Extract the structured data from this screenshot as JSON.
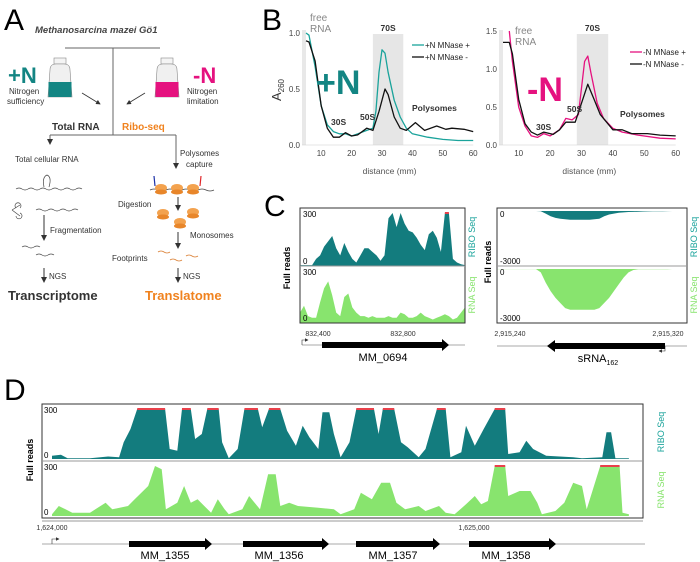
{
  "colors": {
    "teal": "#138583",
    "ribo_fill": "#137c7e",
    "rna_fill": "#88e46e",
    "pink": "#e5127f",
    "orange": "#f0821e",
    "cap_red": "#e8414b",
    "shade": "#e6e6e6"
  },
  "panel_a": {
    "letter": "A",
    "organism": "Methanosarcina mazei Gö1",
    "plus_n": {
      "label": "+N",
      "line1": "Nitrogen",
      "line2": "sufficiency"
    },
    "minus_n": {
      "label": "-N",
      "line1": "Nitrogen",
      "line2": "limitation"
    },
    "total_rna": "Total RNA",
    "ribo_seq": "Ribo-seq",
    "left_steps": {
      "s1": "Total cellular RNA",
      "s2": "Fragmentation",
      "s3": "NGS",
      "result": "Transcriptome"
    },
    "right_steps": {
      "s1a": "Polysomes",
      "s1b": "capture",
      "s2": "Digestion",
      "s3": "Monosomes",
      "s4": "Footprints",
      "s5": "NGS",
      "result": "Translatome"
    }
  },
  "panel_b": {
    "letter": "B",
    "ylabel_main": "A",
    "ylabel_sub": "260"
  },
  "panel_c": {
    "letter": "C",
    "ylabel": "Full reads",
    "ribo_label": "RIBO Seq",
    "rna_label": "RNA Seq",
    "left_gene": "MM_0694",
    "right_gene_main": "sRNA",
    "right_gene_sub": "162"
  },
  "panel_d": {
    "letter": "D",
    "ylabel": "Full reads",
    "ribo_label": "RIBO Seq",
    "rna_label": "RNA Seq",
    "genes": [
      "MM_1355",
      "MM_1356",
      "MM_1357",
      "MM_1358"
    ]
  },
  "chart_data": [
    {
      "type": "line",
      "id": "b_plusN",
      "xlabel": "distance (mm)",
      "ylabel": "A260",
      "xlim": [
        5,
        60
      ],
      "ylim": [
        0,
        1.0
      ],
      "xticks": [
        "10",
        "20",
        "30",
        "40",
        "50",
        "60"
      ],
      "yticks": [
        "0.0",
        "0.5",
        "1.0"
      ],
      "condition_label": "+N",
      "annotations": {
        "free": "free",
        "rna": "RNA",
        "s70": "70S",
        "s30": "30S",
        "s50": "50S",
        "poly": "Polysomes"
      },
      "shaded_range": [
        27,
        37
      ],
      "legend": "top-right",
      "series": [
        {
          "name": "+N MNase +",
          "color": "#1aa39b",
          "x": [
            5,
            6,
            8,
            10,
            12,
            14,
            16,
            18,
            20,
            22,
            25,
            27,
            28,
            29,
            30,
            31,
            32,
            34,
            36,
            38,
            40,
            45,
            50,
            55,
            60
          ],
          "y": [
            1.0,
            0.98,
            0.7,
            0.35,
            0.18,
            0.12,
            0.1,
            0.1,
            0.08,
            0.1,
            0.13,
            0.15,
            0.3,
            0.65,
            0.85,
            0.82,
            0.65,
            0.4,
            0.25,
            0.15,
            0.1,
            0.07,
            0.05,
            0.04,
            0.04
          ]
        },
        {
          "name": "+N MNase -",
          "color": "#111111",
          "x": [
            5,
            6,
            8,
            10,
            12,
            14,
            16,
            18,
            20,
            22,
            25,
            27,
            29,
            31,
            32,
            34,
            36,
            38,
            41,
            44,
            48,
            51,
            53,
            57,
            60
          ],
          "y": [
            0.93,
            0.92,
            0.75,
            0.35,
            0.15,
            0.07,
            0.07,
            0.11,
            0.08,
            0.09,
            0.15,
            0.13,
            0.3,
            0.5,
            0.45,
            0.25,
            0.15,
            0.13,
            0.2,
            0.13,
            0.17,
            0.14,
            0.15,
            0.14,
            0.12
          ]
        }
      ]
    },
    {
      "type": "line",
      "id": "b_minusN",
      "xlabel": "distance (mm)",
      "ylabel": "A260",
      "xlim": [
        5,
        60
      ],
      "ylim": [
        0,
        1.5
      ],
      "xticks": [
        "10",
        "20",
        "30",
        "40",
        "50",
        "60"
      ],
      "yticks": [
        "0.0",
        "0.5",
        "1.0",
        "1.5"
      ],
      "condition_label": "-N",
      "annotations": {
        "free": "free",
        "rna": "RNA",
        "s70": "70S",
        "s30": "30S",
        "s50": "50S",
        "poly": "Polysomes"
      },
      "shaded_range": [
        28.5,
        38.5
      ],
      "legend": "top-right",
      "series": [
        {
          "name": "-N MNase +",
          "color": "#e5127f",
          "x": [
            7,
            8,
            10,
            12,
            14,
            16,
            18,
            20,
            23,
            25,
            27,
            29,
            31,
            32,
            33,
            35,
            37,
            40,
            43,
            48,
            55,
            60
          ],
          "y": [
            1.5,
            1.1,
            0.5,
            0.25,
            0.12,
            0.1,
            0.15,
            0.12,
            0.2,
            0.35,
            0.33,
            0.4,
            1.1,
            1.17,
            0.95,
            0.55,
            0.35,
            0.22,
            0.17,
            0.13,
            0.09,
            0.08
          ]
        },
        {
          "name": "-N MNase -",
          "color": "#111111",
          "x": [
            5,
            7,
            8,
            10,
            12,
            14,
            16,
            18,
            21,
            23,
            25,
            28,
            30,
            32,
            34,
            36,
            40,
            43,
            46,
            51,
            55,
            60
          ],
          "y": [
            1.35,
            1.35,
            1.2,
            0.6,
            0.28,
            0.17,
            0.13,
            0.17,
            0.14,
            0.2,
            0.3,
            0.3,
            0.55,
            0.8,
            0.6,
            0.4,
            0.2,
            0.2,
            0.15,
            0.15,
            0.13,
            0.12
          ]
        }
      ]
    },
    {
      "type": "area",
      "id": "c_left",
      "xlim": [
        832310,
        833090
      ],
      "ylim": [
        0,
        300
      ],
      "xticks": [
        "832,400",
        "832,800"
      ],
      "ytick_top": "300",
      "ytick_zero": "0",
      "series": [
        {
          "name": "RIBO Seq",
          "values": [
            5,
            5,
            5,
            5,
            40,
            60,
            110,
            140,
            170,
            100,
            60,
            130,
            80,
            40,
            20,
            60,
            100,
            100,
            80,
            60,
            30,
            60,
            270,
            300,
            220,
            300,
            240,
            200,
            190,
            160,
            120,
            90,
            180,
            200,
            160,
            80,
            300,
            300,
            40,
            20,
            10,
            5
          ]
        },
        {
          "name": "RNA Seq",
          "values": [
            60,
            100,
            40,
            30,
            30,
            120,
            200,
            240,
            160,
            60,
            40,
            150,
            170,
            90,
            60,
            40,
            40,
            30,
            40,
            30,
            30,
            30,
            40,
            30,
            30,
            60,
            50,
            30,
            30,
            40,
            60,
            40,
            30,
            20,
            30,
            40,
            50,
            40,
            20,
            30,
            60,
            90
          ]
        }
      ]
    },
    {
      "type": "area",
      "id": "c_right",
      "xlim": [
        2915233,
        2915330
      ],
      "ylim": [
        -3000,
        0
      ],
      "xticks": [
        "2,915,240",
        "2,915,320"
      ],
      "ytick_top": "0",
      "ytick_bottom": "-3000",
      "series": [
        {
          "name": "RIBO Seq",
          "values": [
            0,
            0,
            0,
            0,
            0,
            0,
            0,
            0,
            0,
            -20,
            -150,
            -300,
            -400,
            -450,
            -480,
            -500,
            -500,
            -500,
            -500,
            -500,
            -480,
            -450,
            -300,
            -200,
            -150,
            -100,
            -80,
            -60,
            -50,
            -40,
            -30,
            -25,
            -20,
            -15,
            -10,
            -5,
            -2,
            0,
            0,
            0
          ]
        },
        {
          "name": "RNA Seq",
          "values": [
            -5,
            -5,
            -5,
            -5,
            -5,
            -5,
            -5,
            -5,
            -5,
            -200,
            -800,
            -1300,
            -1700,
            -2000,
            -2300,
            -2400,
            -2400,
            -2400,
            -2400,
            -2400,
            -2400,
            -2300,
            -2000,
            -1700,
            -1300,
            -900,
            -500,
            -200,
            -60,
            -20,
            -20,
            -20,
            -20,
            -20,
            -20,
            -20,
            0,
            0,
            0,
            0
          ]
        }
      ]
    },
    {
      "type": "area",
      "id": "d",
      "x_origin": 1624000,
      "xlim_offset": [
        -24,
        1400
      ],
      "ylim": [
        0,
        300
      ],
      "xticks": [
        "1,624,000",
        "1,625,000"
      ],
      "ytick_top": "300",
      "ytick_zero": "0",
      "series": [
        {
          "name": "RIBO Seq",
          "points": [
            [
              0,
              20
            ],
            [
              21,
              25
            ],
            [
              37,
              5
            ],
            [
              90,
              5
            ],
            [
              133,
              15
            ],
            [
              159,
              10
            ],
            [
              170,
              100
            ],
            [
              186,
              180
            ],
            [
              202,
              300
            ],
            [
              268,
              300
            ],
            [
              279,
              60
            ],
            [
              297,
              50
            ],
            [
              308,
              300
            ],
            [
              329,
              300
            ],
            [
              339,
              120
            ],
            [
              355,
              150
            ],
            [
              368,
              300
            ],
            [
              395,
              300
            ],
            [
              403,
              100
            ],
            [
              419,
              5
            ],
            [
              440,
              60
            ],
            [
              456,
              300
            ],
            [
              488,
              300
            ],
            [
              498,
              190
            ],
            [
              514,
              300
            ],
            [
              541,
              300
            ],
            [
              557,
              170
            ],
            [
              578,
              80
            ],
            [
              594,
              200
            ],
            [
              610,
              130
            ],
            [
              631,
              60
            ],
            [
              641,
              280
            ],
            [
              657,
              280
            ],
            [
              668,
              150
            ],
            [
              684,
              10
            ],
            [
              705,
              100
            ],
            [
              721,
              300
            ],
            [
              763,
              300
            ],
            [
              774,
              150
            ],
            [
              784,
              300
            ],
            [
              811,
              300
            ],
            [
              827,
              100
            ],
            [
              843,
              70
            ],
            [
              869,
              10
            ],
            [
              885,
              60
            ],
            [
              912,
              300
            ],
            [
              933,
              300
            ],
            [
              944,
              10
            ],
            [
              970,
              40
            ],
            [
              981,
              200
            ],
            [
              1002,
              80
            ],
            [
              1023,
              180
            ],
            [
              1049,
              300
            ],
            [
              1074,
              300
            ],
            [
              1081,
              30
            ],
            [
              1108,
              40
            ],
            [
              1124,
              110
            ],
            [
              1140,
              60
            ],
            [
              1171,
              20
            ],
            [
              1235,
              10
            ],
            [
              1256,
              5
            ],
            [
              1304,
              10
            ],
            [
              1314,
              160
            ],
            [
              1325,
              160
            ],
            [
              1335,
              5
            ],
            [
              1367,
              5
            ]
          ]
        },
        {
          "name": "RNA Seq",
          "points": [
            [
              0,
              10
            ],
            [
              16,
              60
            ],
            [
              32,
              40
            ],
            [
              48,
              20
            ],
            [
              90,
              20
            ],
            [
              127,
              80
            ],
            [
              143,
              40
            ],
            [
              180,
              60
            ],
            [
              196,
              100
            ],
            [
              228,
              180
            ],
            [
              244,
              300
            ],
            [
              260,
              280
            ],
            [
              270,
              40
            ],
            [
              297,
              80
            ],
            [
              313,
              180
            ],
            [
              329,
              80
            ],
            [
              345,
              100
            ],
            [
              361,
              60
            ],
            [
              377,
              20
            ],
            [
              393,
              100
            ],
            [
              409,
              40
            ],
            [
              419,
              10
            ],
            [
              451,
              40
            ],
            [
              467,
              120
            ],
            [
              493,
              40
            ],
            [
              512,
              250
            ],
            [
              530,
              250
            ],
            [
              541,
              60
            ],
            [
              562,
              80
            ],
            [
              583,
              60
            ],
            [
              631,
              50
            ],
            [
              668,
              40
            ],
            [
              684,
              10
            ],
            [
              716,
              40
            ],
            [
              732,
              140
            ],
            [
              758,
              100
            ],
            [
              780,
              200
            ],
            [
              801,
              200
            ],
            [
              816,
              80
            ],
            [
              837,
              40
            ],
            [
              869,
              60
            ],
            [
              885,
              30
            ],
            [
              917,
              60
            ],
            [
              933,
              20
            ],
            [
              954,
              10
            ],
            [
              981,
              70
            ],
            [
              1002,
              120
            ],
            [
              1017,
              70
            ],
            [
              1033,
              90
            ],
            [
              1049,
              300
            ],
            [
              1074,
              300
            ],
            [
              1081,
              120
            ],
            [
              1108,
              150
            ],
            [
              1134,
              150
            ],
            [
              1150,
              80
            ],
            [
              1161,
              10
            ],
            [
              1193,
              30
            ],
            [
              1214,
              80
            ],
            [
              1235,
              200
            ],
            [
              1256,
              180
            ],
            [
              1267,
              40
            ],
            [
              1299,
              300
            ],
            [
              1345,
              300
            ],
            [
              1352,
              20
            ],
            [
              1367,
              10
            ]
          ]
        }
      ]
    }
  ]
}
